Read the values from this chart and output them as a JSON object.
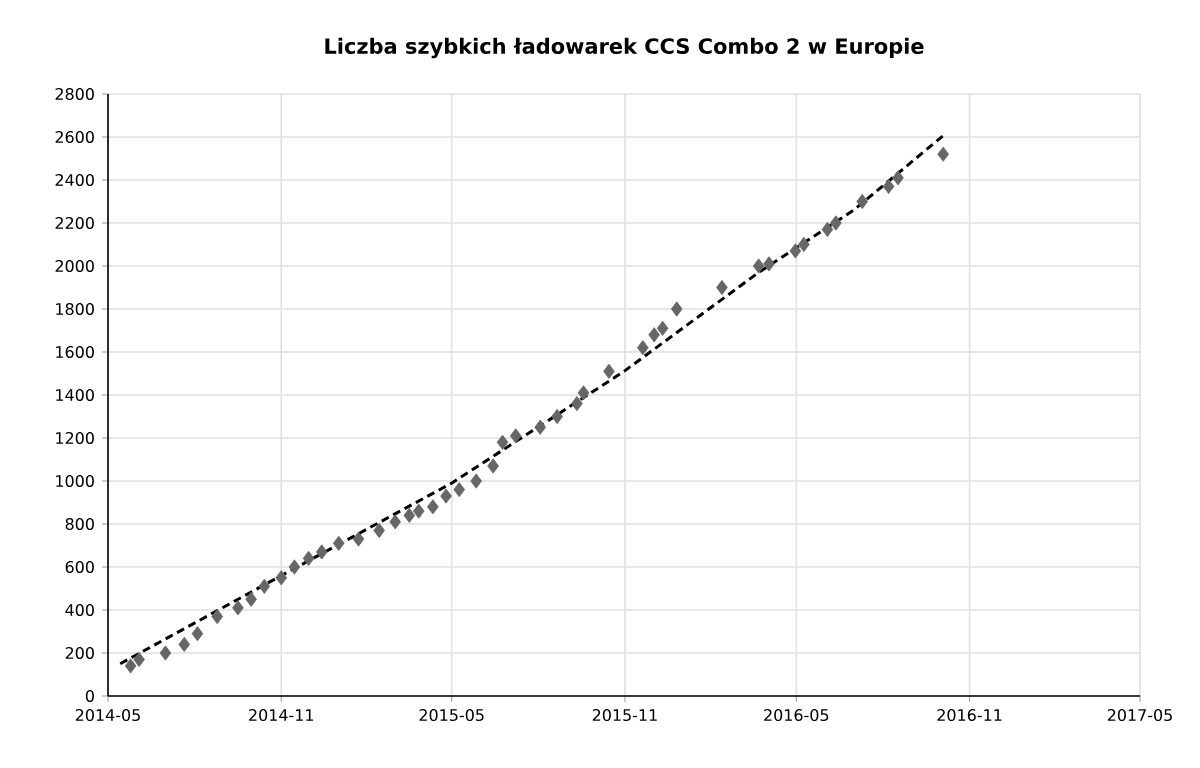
{
  "chart_data": {
    "type": "scatter",
    "title": "Liczba szybkich ładowarek CCS Combo 2 w Europie",
    "series": [
      {
        "color": "#666666",
        "marker": "diamond",
        "x": [
          "2014-05-25",
          "2014-06-03",
          "2014-07-01",
          "2014-07-21",
          "2014-08-04",
          "2014-08-25",
          "2014-09-16",
          "2014-09-30",
          "2014-10-14",
          "2014-11-01",
          "2014-11-15",
          "2014-11-30",
          "2014-12-14",
          "2015-01-01",
          "2015-01-22",
          "2015-02-13",
          "2015-03-02",
          "2015-03-17",
          "2015-03-27",
          "2015-04-11",
          "2015-04-25",
          "2015-05-09",
          "2015-05-27",
          "2015-06-14",
          "2015-06-24",
          "2015-07-08",
          "2015-08-03",
          "2015-08-21",
          "2015-09-11",
          "2015-09-18",
          "2015-10-15",
          "2015-11-20",
          "2015-12-02",
          "2015-12-11",
          "2015-12-26",
          "2016-02-12",
          "2016-03-22",
          "2016-04-02",
          "2016-04-30",
          "2016-05-09",
          "2016-06-03",
          "2016-06-12",
          "2016-07-10",
          "2016-08-07",
          "2016-08-17",
          "2016-10-04"
        ],
        "values": [
          140,
          170,
          200,
          240,
          290,
          370,
          410,
          450,
          510,
          550,
          600,
          640,
          670,
          710,
          730,
          770,
          810,
          840,
          860,
          880,
          930,
          960,
          1000,
          1070,
          1180,
          1210,
          1250,
          1300,
          1360,
          1410,
          1510,
          1620,
          1680,
          1710,
          1800,
          1900,
          2000,
          2010,
          2070,
          2100,
          2170,
          2200,
          2300,
          2370,
          2410,
          2520
        ]
      },
      {
        "type": "line",
        "color": "#000000",
        "line_style": "dashed",
        "x": [
          "2014-05-14",
          "2014-11-01",
          "2015-05-01",
          "2015-10-31",
          "2016-03-22",
          "2016-07-01",
          "2016-10-05"
        ],
        "values": [
          150,
          560,
          990,
          1510,
          1970,
          2260,
          2610
        ]
      }
    ],
    "xlim": [
      "2014-05",
      "2017-05"
    ],
    "xticks": [
      "2014-05",
      "2014-11",
      "2015-05",
      "2015-11",
      "2016-05",
      "2016-11",
      "2017-05"
    ],
    "ylim": [
      0,
      2800
    ],
    "yticks": [
      0,
      200,
      400,
      600,
      800,
      1000,
      1200,
      1400,
      1600,
      1800,
      2000,
      2200,
      2400,
      2600,
      2800
    ],
    "grid": true
  }
}
